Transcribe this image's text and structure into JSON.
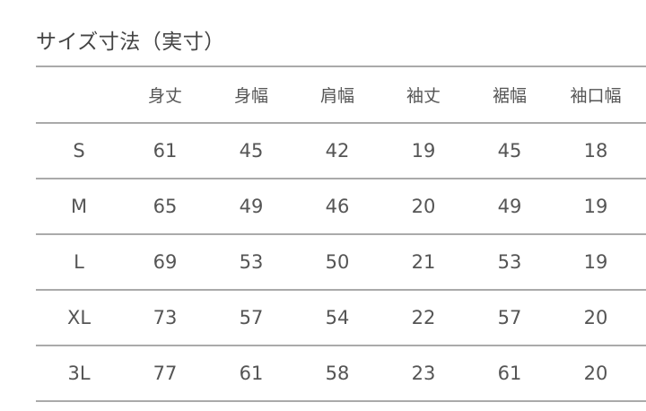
{
  "title": "サイズ寸法（実寸）",
  "table": {
    "headers": [
      "",
      "身丈",
      "身幅",
      "肩幅",
      "袖丈",
      "裾幅",
      "袖口幅"
    ],
    "rows": [
      [
        "S",
        "61",
        "45",
        "42",
        "19",
        "45",
        "18"
      ],
      [
        "M",
        "65",
        "49",
        "46",
        "20",
        "49",
        "19"
      ],
      [
        "L",
        "69",
        "53",
        "50",
        "21",
        "53",
        "19"
      ],
      [
        "XL",
        "73",
        "57",
        "54",
        "22",
        "57",
        "20"
      ],
      [
        "3L",
        "77",
        "61",
        "58",
        "23",
        "61",
        "20"
      ]
    ]
  }
}
